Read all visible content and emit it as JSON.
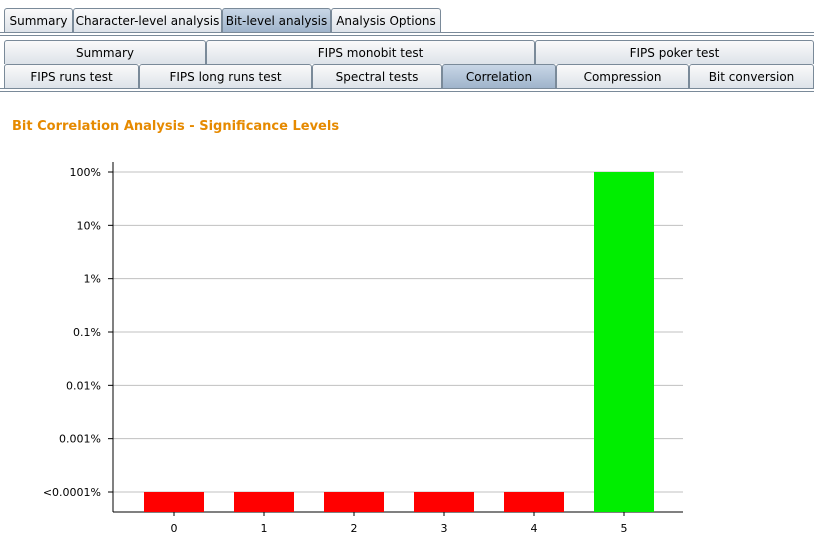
{
  "main_tabs": [
    {
      "label": "Summary",
      "selected": false
    },
    {
      "label": "Character-level analysis",
      "selected": false
    },
    {
      "label": "Bit-level analysis",
      "selected": true
    },
    {
      "label": "Analysis Options",
      "selected": false
    }
  ],
  "sub_tabs_row1": [
    {
      "label": "Summary",
      "selected": false
    },
    {
      "label": "FIPS monobit test",
      "selected": false
    },
    {
      "label": "FIPS poker test",
      "selected": false
    }
  ],
  "sub_tabs_row2": [
    {
      "label": "FIPS runs test",
      "selected": false
    },
    {
      "label": "FIPS long runs test",
      "selected": false
    },
    {
      "label": "Spectral tests",
      "selected": false
    },
    {
      "label": "Correlation",
      "selected": true
    },
    {
      "label": "Compression",
      "selected": false
    },
    {
      "label": "Bit conversion",
      "selected": false
    }
  ],
  "panel": {
    "title": "Bit Correlation Analysis - Significance Levels"
  },
  "chart_data": {
    "type": "bar",
    "title": "Bit Correlation Analysis - Significance Levels",
    "y_scale": "log",
    "y_tick_labels": [
      "100%",
      "10%",
      "1%",
      "0.1%",
      "0.01%",
      "0.001%",
      "<0.0001%"
    ],
    "categories": [
      "0",
      "1",
      "2",
      "3",
      "4",
      "5"
    ],
    "values": [
      "<0.0001%",
      "<0.0001%",
      "<0.0001%",
      "<0.0001%",
      "<0.0001%",
      "100%"
    ],
    "bar_colors": [
      "#ff0000",
      "#ff0000",
      "#ff0000",
      "#ff0000",
      "#ff0000",
      "#00ee00"
    ],
    "grid": true
  }
}
